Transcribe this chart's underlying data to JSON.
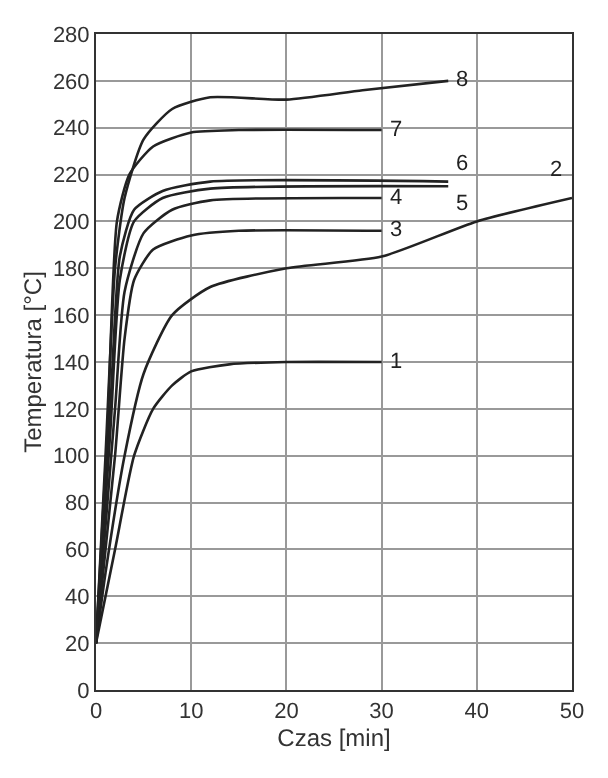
{
  "chart_data": {
    "type": "line",
    "xlabel": "Czas [min]",
    "ylabel": "Temperatura [°C]",
    "xlim": [
      0,
      50
    ],
    "ylim": [
      0,
      280
    ],
    "xticks": [
      0,
      10,
      20,
      30,
      40,
      50
    ],
    "yticks": [
      0,
      20,
      40,
      60,
      80,
      100,
      120,
      140,
      160,
      180,
      200,
      220,
      240,
      260,
      280
    ],
    "grid": true,
    "legend": false,
    "marker": "none",
    "line_style": "solid",
    "series": [
      {
        "name": "1",
        "color": "#222222",
        "x": [
          0,
          2,
          4,
          6,
          8,
          10,
          14,
          20,
          30
        ],
        "values": [
          20,
          60,
          100,
          120,
          130,
          136,
          139,
          140,
          140
        ]
      },
      {
        "name": "2",
        "color": "#222222",
        "x": [
          0,
          1,
          3,
          5,
          8,
          12,
          20,
          30,
          40,
          50
        ],
        "values": [
          20,
          50,
          100,
          135,
          160,
          172,
          180,
          185,
          200,
          210
        ]
      },
      {
        "name": "3",
        "color": "#222222",
        "x": [
          0,
          2,
          3,
          4,
          6,
          10,
          15,
          30
        ],
        "values": [
          20,
          100,
          150,
          175,
          188,
          194,
          196,
          196
        ]
      },
      {
        "name": "4",
        "color": "#222222",
        "x": [
          0,
          2,
          3,
          5,
          8,
          12,
          30
        ],
        "values": [
          20,
          120,
          170,
          195,
          205,
          209,
          210
        ]
      },
      {
        "name": "5",
        "color": "#222222",
        "x": [
          0,
          1.5,
          2.5,
          4,
          7,
          12,
          37
        ],
        "values": [
          20,
          110,
          175,
          200,
          210,
          214,
          215
        ]
      },
      {
        "name": "6",
        "color": "#222222",
        "x": [
          0,
          1.5,
          2.5,
          4,
          7,
          12,
          37
        ],
        "values": [
          20,
          120,
          185,
          205,
          213,
          217,
          217
        ]
      },
      {
        "name": "7",
        "color": "#222222",
        "x": [
          0,
          1.2,
          2.2,
          3.5,
          6,
          10,
          15,
          30
        ],
        "values": [
          20,
          110,
          200,
          220,
          232,
          238,
          239,
          239
        ]
      },
      {
        "name": "8",
        "color": "#222222",
        "x": [
          0,
          1,
          2,
          3,
          5,
          8,
          12,
          20,
          28,
          37
        ],
        "values": [
          20,
          100,
          180,
          210,
          235,
          248,
          253,
          252,
          256,
          260
        ]
      }
    ]
  }
}
